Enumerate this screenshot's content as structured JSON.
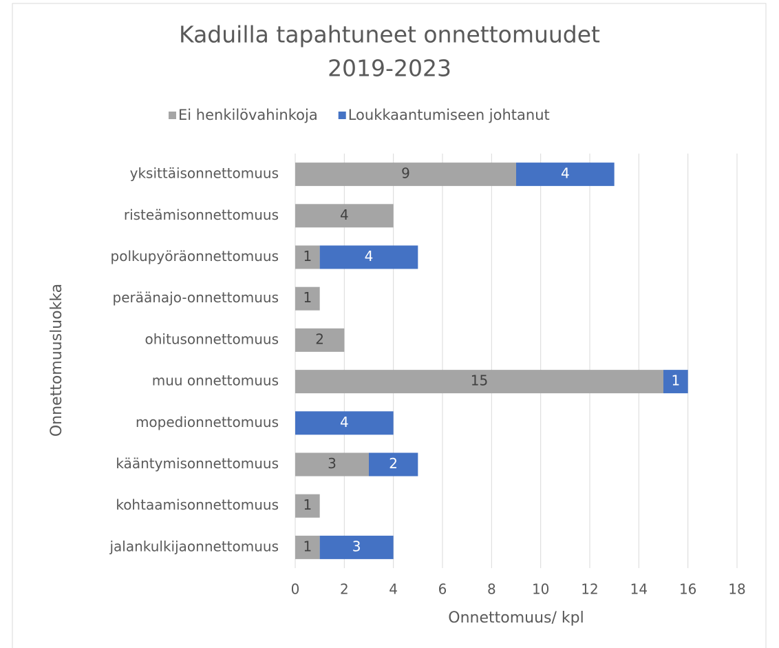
{
  "chart_data": {
    "type": "bar",
    "orientation": "horizontal",
    "stacked": true,
    "title": [
      "Kaduilla tapahtuneet onnettomuudet",
      "2019-2023"
    ],
    "x_label": "Onnettomuus/ kpl",
    "y_label": "Onnettomuusluokka",
    "categories": [
      "yksittäisonnettomuus",
      "risteämisonnettomuus",
      "polkupyöräonnettomuus",
      "peräänajo-onnettomuus",
      "ohitusonnettomuus",
      "muu onnettomuus",
      "mopedionnettomuus",
      "kääntymisonnettomuus",
      "kohtaamisonnettomuus",
      "jalankulkijaonnettomuus"
    ],
    "series": [
      {
        "name": "Ei henkilövahinkoja",
        "color": "#a5a5a5",
        "values": [
          9,
          4,
          1,
          1,
          2,
          15,
          0,
          3,
          1,
          1
        ]
      },
      {
        "name": "Loukkaantumiseen johtanut",
        "color": "#4472c4",
        "values": [
          4,
          0,
          4,
          0,
          0,
          1,
          4,
          2,
          0,
          3
        ]
      }
    ],
    "xlim": [
      0,
      18
    ],
    "xticks": [
      0,
      2,
      4,
      6,
      8,
      10,
      12,
      14,
      16,
      18
    ],
    "grid": true,
    "legend": "top"
  }
}
